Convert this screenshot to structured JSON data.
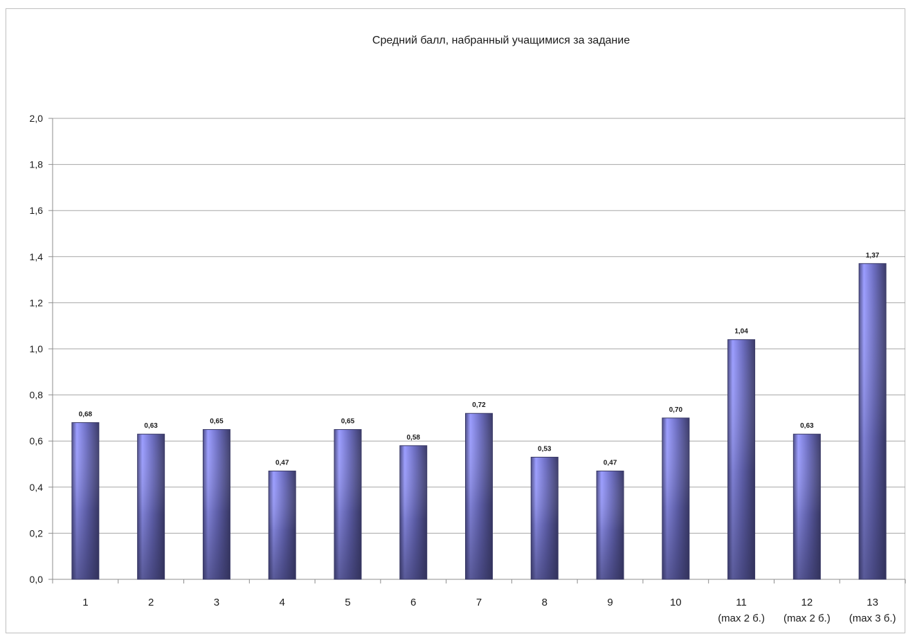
{
  "chart_data": {
    "type": "bar",
    "title": "Средний балл, набранный учащимися за задание",
    "xlabel": "",
    "ylabel": "",
    "categories": [
      [
        "1"
      ],
      [
        "2"
      ],
      [
        "3"
      ],
      [
        "4"
      ],
      [
        "5"
      ],
      [
        "6"
      ],
      [
        "7"
      ],
      [
        "8"
      ],
      [
        "9"
      ],
      [
        "10"
      ],
      [
        "11",
        "(max 2 б.)"
      ],
      [
        "12",
        "(max 2 б.)"
      ],
      [
        "13",
        "(max 3 б.)"
      ]
    ],
    "values": [
      0.68,
      0.63,
      0.65,
      0.47,
      0.65,
      0.58,
      0.72,
      0.53,
      0.47,
      0.7,
      1.04,
      0.63,
      1.37
    ],
    "value_labels": [
      "0,68",
      "0,63",
      "0,65",
      "0,47",
      "0,65",
      "0,58",
      "0,72",
      "0,53",
      "0,47",
      "0,70",
      "1,04",
      "0,63",
      "1,37"
    ],
    "ylim": [
      0,
      2.0
    ],
    "yticks": [
      0.0,
      0.2,
      0.4,
      0.6,
      0.8,
      1.0,
      1.2,
      1.4,
      1.6,
      1.8,
      2.0
    ],
    "ytick_labels": [
      "0,0",
      "0,2",
      "0,4",
      "0,6",
      "0,8",
      "1,0",
      "1,2",
      "1,4",
      "1,6",
      "1,8",
      "2,0"
    ],
    "grid": true,
    "legend": "none",
    "colors": {
      "bar_light": "#9a9cff",
      "bar_dark": "#3f3f6e",
      "grid": "#a6a6a6",
      "axis": "#8c8c8c"
    }
  }
}
